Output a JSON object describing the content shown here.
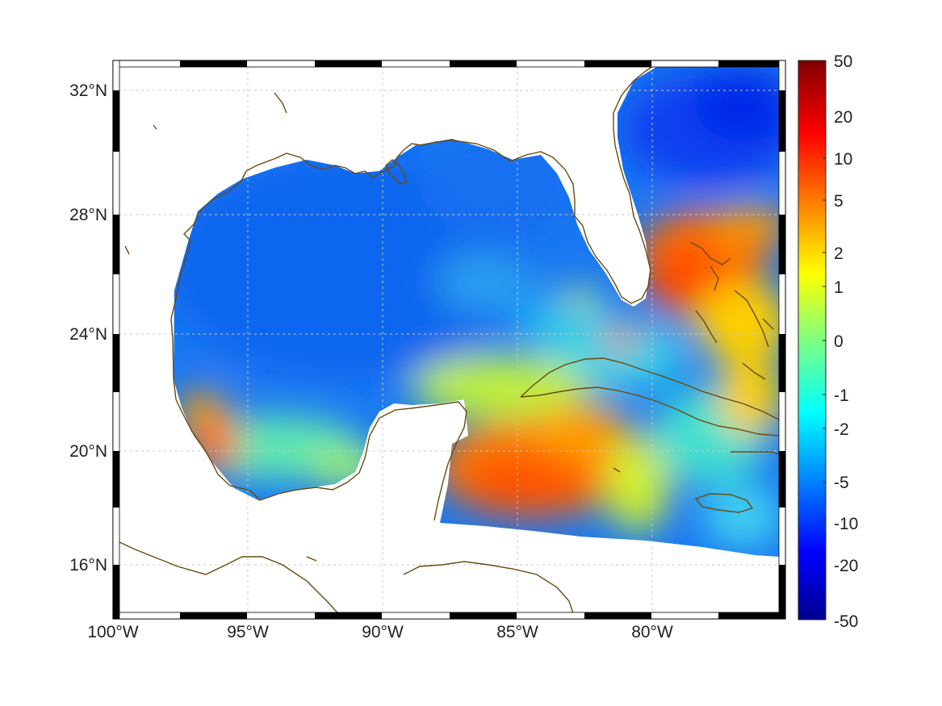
{
  "map": {
    "projection": "mercator",
    "lon_range": [
      -100,
      -75
    ],
    "lat_range": [
      14.3,
      33
    ],
    "gridlines": true,
    "coastline_color": "#6b4a10",
    "frame": "checkerboard-black-white"
  },
  "axes": {
    "lon_ticks": [
      "100°W",
      "95°W",
      "90°W",
      "85°W",
      "80°W"
    ],
    "lat_ticks": [
      "32°N",
      "28°N",
      "24°N",
      "20°N",
      "16°N"
    ]
  },
  "colorbar": {
    "colormap": "jet",
    "ticks": [
      "50",
      "20",
      "10",
      "5",
      "2",
      "1",
      "0",
      "-1",
      "-2",
      "-5",
      "-10",
      "-20",
      "-50"
    ],
    "range": [
      -50,
      50
    ],
    "scale": "nonlinear"
  },
  "field": {
    "description_levels": {
      "gulf_interior": "negative (-5 to -10)",
      "yucatan_caribbean": "positive (5 to 10)",
      "bahamas": "positive (5 to 10)",
      "atlantic_north": "negative (-10 to -20)"
    }
  }
}
